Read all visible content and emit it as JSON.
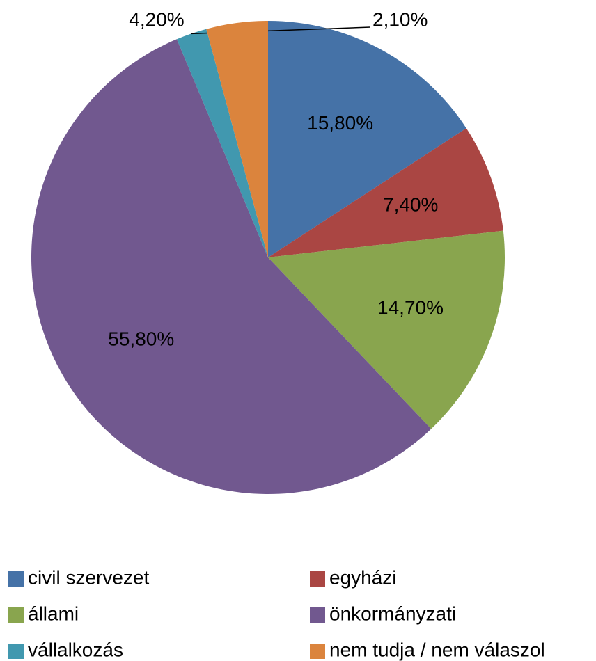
{
  "chart_data": {
    "type": "pie",
    "categories": [
      "civil szervezet",
      "egyházi",
      "állami",
      "önkormányzati",
      "vállalkozás",
      "nem tudja / nem válaszol"
    ],
    "values": [
      15.8,
      7.4,
      14.7,
      55.8,
      2.1,
      4.2
    ],
    "value_labels": [
      "15,80%",
      "7,40%",
      "14,70%",
      "55,80%",
      "2,10%",
      "4,20%"
    ],
    "colors": [
      "#4572a7",
      "#aa4643",
      "#89a54e",
      "#71588f",
      "#4198af",
      "#db843d"
    ],
    "legend": "bottom"
  }
}
